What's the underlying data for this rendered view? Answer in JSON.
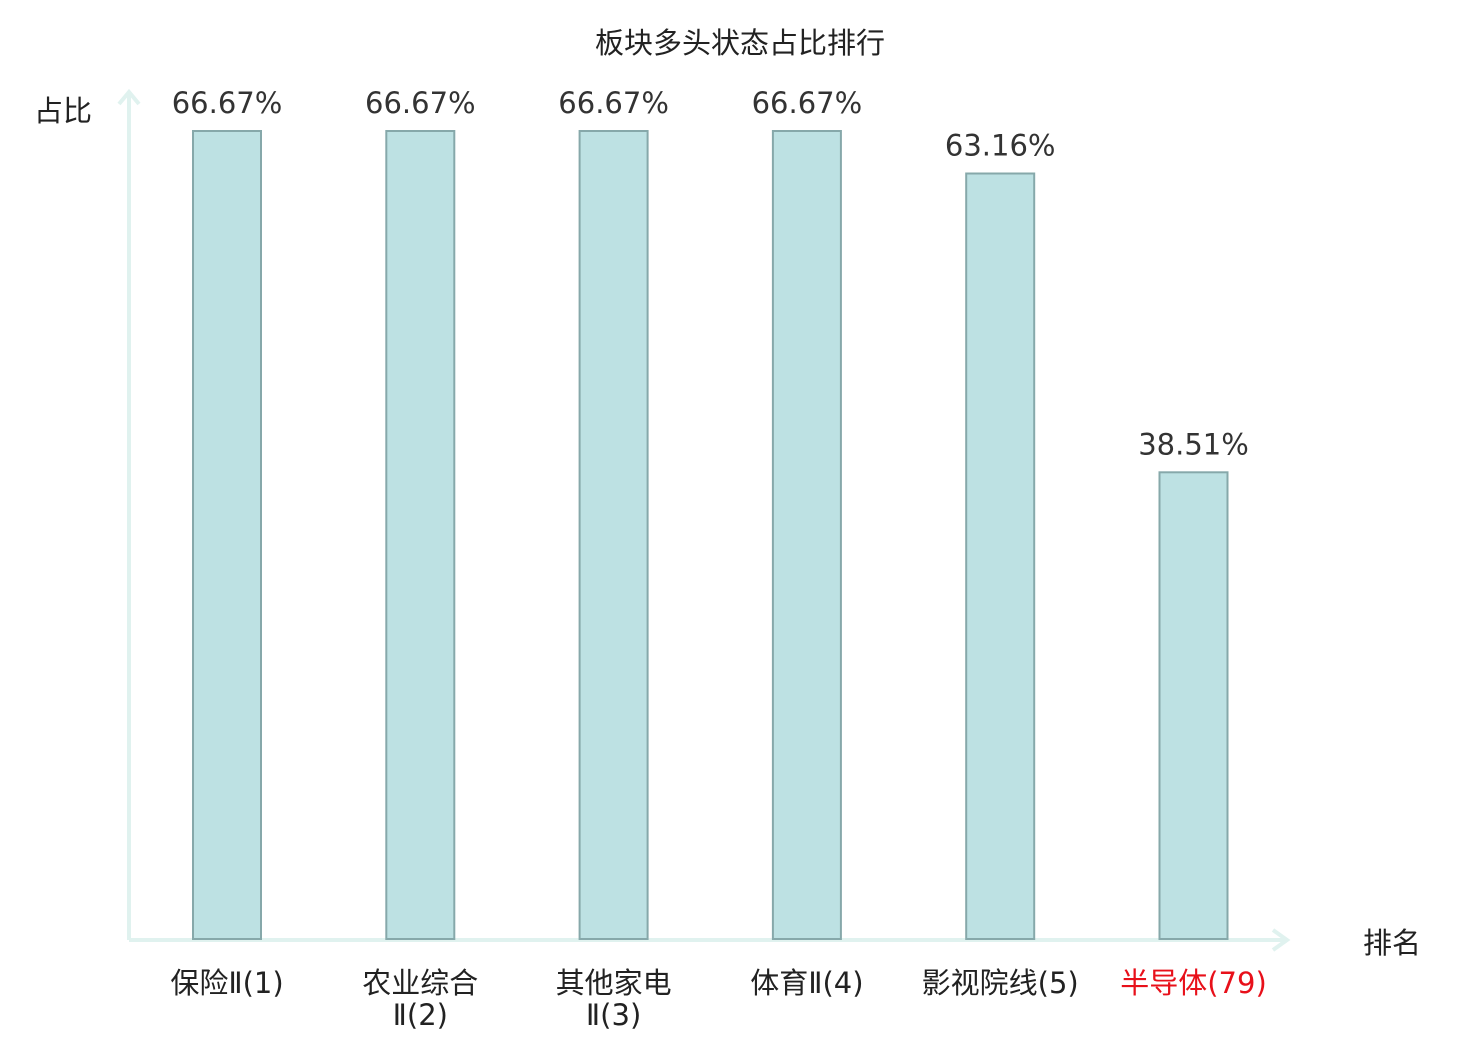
{
  "chart_data": {
    "type": "bar",
    "title": "板块多头状态占比排行",
    "ylabel": "占比",
    "xlabel": "排名",
    "ylim": [
      0,
      66.67
    ],
    "grid": false,
    "categories": [
      {
        "name_line1": "保险Ⅱ(1)",
        "name_line2": "",
        "highlight": false
      },
      {
        "name_line1": "农业综合",
        "name_line2": "Ⅱ(2)",
        "highlight": false
      },
      {
        "name_line1": "其他家电",
        "name_line2": "Ⅱ(3)",
        "highlight": false
      },
      {
        "name_line1": "体育Ⅱ(4)",
        "name_line2": "",
        "highlight": false
      },
      {
        "name_line1": "影视院线(5)",
        "name_line2": "",
        "highlight": false
      },
      {
        "name_line1": "半导体(79)",
        "name_line2": "",
        "highlight": true
      }
    ],
    "values": [
      66.67,
      66.67,
      66.67,
      66.67,
      63.16,
      38.51
    ],
    "value_labels": [
      "66.67%",
      "66.67%",
      "66.67%",
      "66.67%",
      "63.16%",
      "38.51%"
    ],
    "colors": {
      "bar_fill": "#bde1e3",
      "bar_stroke": "#86a8aa",
      "axis": "#e0f2ef",
      "text": "#222222",
      "value_text": "#333333",
      "highlight_text": "#e8101a"
    }
  }
}
